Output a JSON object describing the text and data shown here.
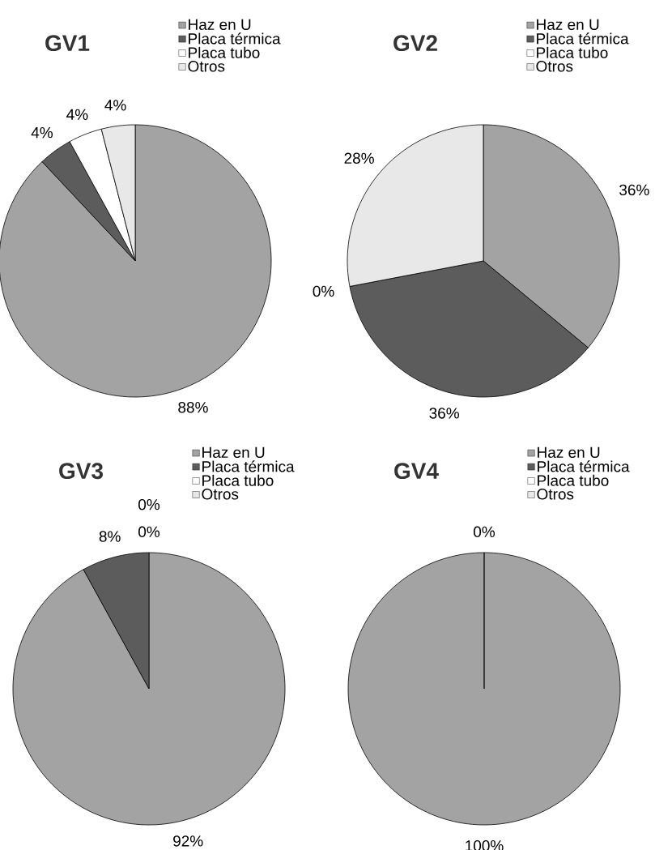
{
  "chart_data": [
    {
      "type": "pie",
      "title": "GV1",
      "categories": [
        "Haz en U",
        "Placa térmica",
        "Placa tubo",
        "Otros"
      ],
      "values": [
        88,
        4,
        4,
        4
      ],
      "colors": [
        "#a3a3a3",
        "#5c5c5c",
        "#ffffff",
        "#e8e8e8"
      ],
      "value_labels": [
        "88%",
        "4%",
        "4%",
        "4%"
      ],
      "legend": "top right"
    },
    {
      "type": "pie",
      "title": "GV2",
      "categories": [
        "Haz en U",
        "Placa térmica",
        "Placa tubo",
        "Otros"
      ],
      "values": [
        36,
        36,
        0,
        28
      ],
      "colors": [
        "#a3a3a3",
        "#5c5c5c",
        "#ffffff",
        "#e8e8e8"
      ],
      "value_labels": [
        "36%",
        "36%",
        "0%",
        "28%"
      ],
      "legend": "top right"
    },
    {
      "type": "pie",
      "title": "GV3",
      "categories": [
        "Haz en U",
        "Placa térmica",
        "Placa tubo",
        "Otros"
      ],
      "values": [
        92,
        8,
        0,
        0
      ],
      "colors": [
        "#a3a3a3",
        "#5c5c5c",
        "#ffffff",
        "#e8e8e8"
      ],
      "value_labels": [
        "92%",
        "8%",
        "0%",
        "0%"
      ],
      "legend": "top right"
    },
    {
      "type": "pie",
      "title": "GV4",
      "categories": [
        "Haz en U",
        "Placa térmica",
        "Placa tubo",
        "Otros"
      ],
      "values": [
        100,
        0,
        0,
        0
      ],
      "colors": [
        "#a3a3a3",
        "#5c5c5c",
        "#ffffff",
        "#e8e8e8"
      ],
      "value_labels": [
        "100%",
        "0%",
        null,
        null
      ],
      "legend": "top right"
    }
  ]
}
